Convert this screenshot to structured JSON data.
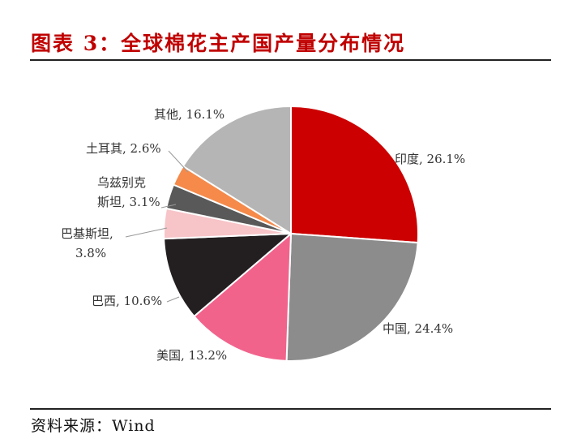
{
  "title": "图表 3：全球棉花主产国产量分布情况",
  "source": "资料来源：Wind",
  "chart_data": {
    "type": "pie",
    "start_angle_deg": 0,
    "direction": "clockwise",
    "slices": [
      {
        "label_lines": [
          "印度, 26.1%"
        ],
        "name": "印度",
        "value": 26.1,
        "color": "#cc0000"
      },
      {
        "label_lines": [
          "中国, 24.4%"
        ],
        "name": "中国",
        "value": 24.4,
        "color": "#8c8c8c"
      },
      {
        "label_lines": [
          "美国, 13.2%"
        ],
        "name": "美国",
        "value": 13.2,
        "color": "#f2638c"
      },
      {
        "label_lines": [
          "巴西, 10.6%"
        ],
        "name": "巴西",
        "value": 10.6,
        "color": "#231f20"
      },
      {
        "label_lines": [
          "巴基斯坦,",
          "3.8%"
        ],
        "name": "巴基斯坦",
        "value": 3.8,
        "color": "#f7c4c8"
      },
      {
        "label_lines": [
          "乌兹别克",
          "斯坦, 3.1%"
        ],
        "name": "乌兹别克斯坦",
        "value": 3.1,
        "color": "#595959"
      },
      {
        "label_lines": [
          "土耳其, 2.6%"
        ],
        "name": "土耳其",
        "value": 2.6,
        "color": "#f58a4b"
      },
      {
        "label_lines": [
          "其他, 16.1%"
        ],
        "name": "其他",
        "value": 16.1,
        "color": "#b5b5b5"
      }
    ]
  }
}
